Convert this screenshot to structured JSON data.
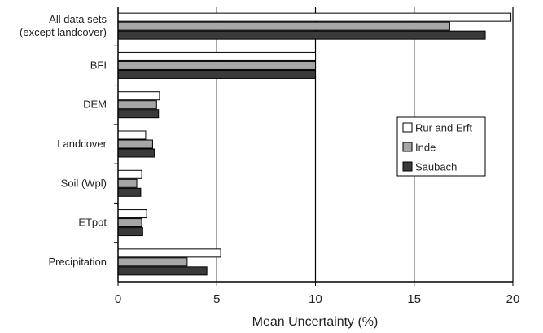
{
  "chart_data": {
    "type": "bar",
    "orientation": "horizontal",
    "categories": [
      [
        "All data sets",
        "(except landcover)"
      ],
      [
        "BFI"
      ],
      [
        "DEM"
      ],
      [
        "Landcover"
      ],
      [
        "Soil (Wpl)"
      ],
      [
        "ETpot"
      ],
      [
        "Precipitation"
      ]
    ],
    "series": [
      {
        "name": "Rur and Erft",
        "color": "#ffffff",
        "values": [
          19.9,
          10.0,
          2.1,
          1.4,
          1.2,
          1.45,
          5.2
        ]
      },
      {
        "name": "Inde",
        "color": "#a6a6a6",
        "values": [
          16.8,
          10.0,
          1.95,
          1.75,
          0.95,
          1.2,
          3.5
        ]
      },
      {
        "name": "Saubach",
        "color": "#3a3a3a",
        "values": [
          18.6,
          10.0,
          2.05,
          1.85,
          1.15,
          1.25,
          4.5
        ]
      }
    ],
    "xlabel": "Mean Uncertainty (%)",
    "ylabel": "",
    "xlim": [
      0,
      20
    ],
    "xticks": [
      "0",
      "5",
      "10",
      "15",
      "20"
    ],
    "grid": "vertical",
    "legend": "right"
  }
}
